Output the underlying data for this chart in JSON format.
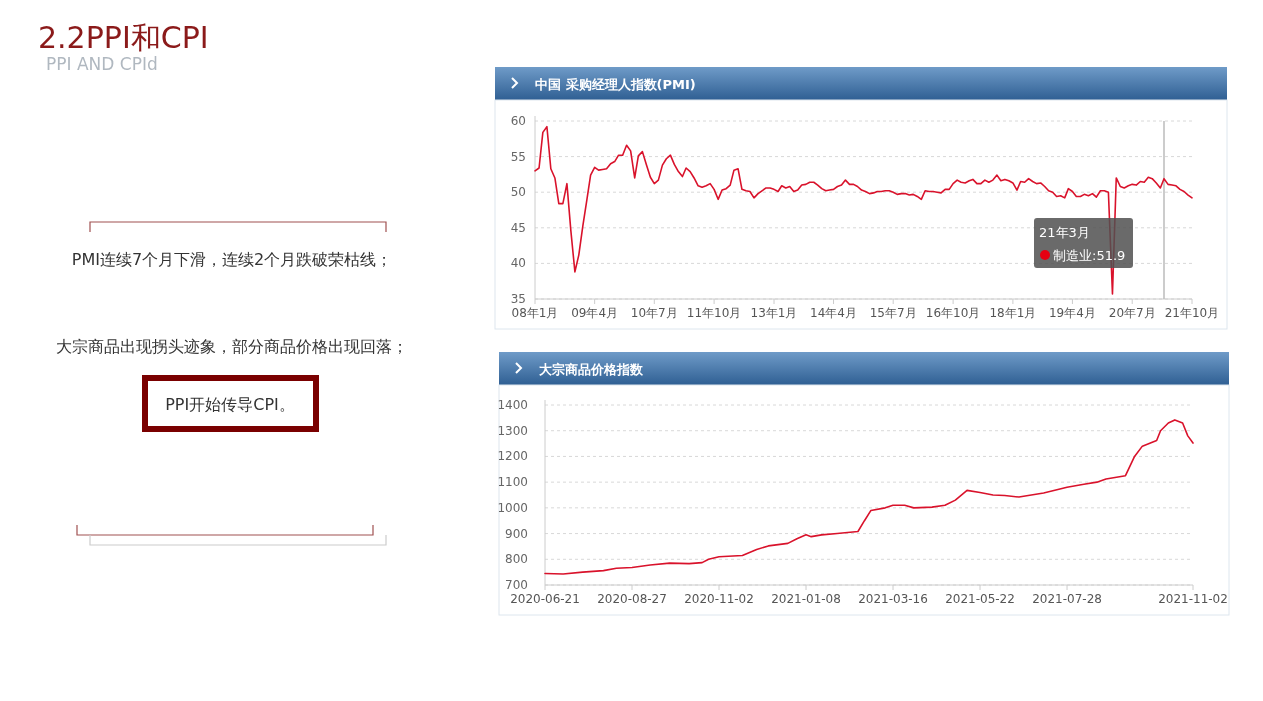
{
  "chart_data": [
    {
      "type": "other",
      "title": "2.2PPI和CPI",
      "subtitle": "PPI AND CPId",
      "annotations": [
        "PMI连续7个月下滑，连续2个月跌破荣枯线；",
        "大宗商品出现拐头迹象，部分商品价格出现回落；",
        "PPI开始传导CPI。"
      ]
    },
    {
      "type": "line",
      "title": "中国 采购经理人指数(PMI)",
      "xlim": [
        "2008-01",
        "2021-10"
      ],
      "ylim": [
        35,
        60
      ],
      "yticks": [
        35,
        40,
        45,
        50,
        55,
        60
      ],
      "grid": "y",
      "xticks": [
        {
          "value": "2008-01",
          "label": "08年1月"
        },
        {
          "value": "2009-04",
          "label": "09年4月"
        },
        {
          "value": "2010-07",
          "label": "10年7月"
        },
        {
          "value": "2011-10",
          "label": "11年10月"
        },
        {
          "value": "2013-01",
          "label": "13年1月"
        },
        {
          "value": "2014-04",
          "label": "14年4月"
        },
        {
          "value": "2015-07",
          "label": "15年7月"
        },
        {
          "value": "2016-10",
          "label": "16年10月"
        },
        {
          "value": "2018-01",
          "label": "18年1月"
        },
        {
          "value": "2019-04",
          "label": "19年4月"
        },
        {
          "value": "2020-07",
          "label": "20年7月"
        },
        {
          "value": "2021-10",
          "label": "21年10月"
        }
      ],
      "ref_lines": [
        {
          "axis": "x",
          "value": "2021-03",
          "color": "#bbbbbb"
        }
      ],
      "annotations": [
        "21年3月",
        "制造业:51.9"
      ],
      "series": [
        {
          "color": "#d9122b",
          "x": [
            "2008-01",
            "2008-02",
            "2008-03",
            "2008-04",
            "2008-05",
            "2008-06",
            "2008-07",
            "2008-08",
            "2008-09",
            "2008-10",
            "2008-11",
            "2008-12",
            "2009-01",
            "2009-02",
            "2009-03",
            "2009-04",
            "2009-05",
            "2009-06",
            "2009-07",
            "2009-08",
            "2009-09",
            "2009-10",
            "2009-11",
            "2009-12",
            "2010-01",
            "2010-02",
            "2010-03",
            "2010-04",
            "2010-05",
            "2010-06",
            "2010-07",
            "2010-08",
            "2010-09",
            "2010-10",
            "2010-11",
            "2010-12",
            "2011-01",
            "2011-02",
            "2011-03",
            "2011-04",
            "2011-05",
            "2011-06",
            "2011-07",
            "2011-08",
            "2011-09",
            "2011-10",
            "2011-11",
            "2011-12",
            "2012-01",
            "2012-02",
            "2012-03",
            "2012-04",
            "2012-05",
            "2012-06",
            "2012-07",
            "2012-08",
            "2012-09",
            "2012-10",
            "2012-11",
            "2012-12",
            "2013-01",
            "2013-02",
            "2013-03",
            "2013-04",
            "2013-05",
            "2013-06",
            "2013-07",
            "2013-08",
            "2013-09",
            "2013-10",
            "2013-11",
            "2013-12",
            "2014-01",
            "2014-02",
            "2014-03",
            "2014-04",
            "2014-05",
            "2014-06",
            "2014-07",
            "2014-08",
            "2014-09",
            "2014-10",
            "2014-11",
            "2014-12",
            "2015-01",
            "2015-02",
            "2015-03",
            "2015-04",
            "2015-05",
            "2015-06",
            "2015-07",
            "2015-08",
            "2015-09",
            "2015-10",
            "2015-11",
            "2015-12",
            "2016-01",
            "2016-02",
            "2016-03",
            "2016-04",
            "2016-05",
            "2016-06",
            "2016-07",
            "2016-08",
            "2016-09",
            "2016-10",
            "2016-11",
            "2016-12",
            "2017-01",
            "2017-02",
            "2017-03",
            "2017-04",
            "2017-05",
            "2017-06",
            "2017-07",
            "2017-08",
            "2017-09",
            "2017-10",
            "2017-11",
            "2017-12",
            "2018-01",
            "2018-02",
            "2018-03",
            "2018-04",
            "2018-05",
            "2018-06",
            "2018-07",
            "2018-08",
            "2018-09",
            "2018-10",
            "2018-11",
            "2018-12",
            "2019-01",
            "2019-02",
            "2019-03",
            "2019-04",
            "2019-05",
            "2019-06",
            "2019-07",
            "2019-08",
            "2019-09",
            "2019-10",
            "2019-11",
            "2019-12",
            "2020-01",
            "2020-02",
            "2020-03",
            "2020-04",
            "2020-05",
            "2020-06",
            "2020-07",
            "2020-08",
            "2020-09",
            "2020-10",
            "2020-11",
            "2020-12",
            "2021-01",
            "2021-02",
            "2021-03",
            "2021-04",
            "2021-05",
            "2021-06",
            "2021-07",
            "2021-08",
            "2021-09",
            "2021-10"
          ],
          "values": [
            53.0,
            53.4,
            58.4,
            59.2,
            53.3,
            52.0,
            48.4,
            48.4,
            51.2,
            44.6,
            38.8,
            41.2,
            45.3,
            49.0,
            52.4,
            53.5,
            53.1,
            53.2,
            53.3,
            54.0,
            54.3,
            55.2,
            55.2,
            56.6,
            55.8,
            52.0,
            55.1,
            55.7,
            53.9,
            52.1,
            51.2,
            51.7,
            53.8,
            54.7,
            55.2,
            53.9,
            52.9,
            52.2,
            53.4,
            52.9,
            52.0,
            50.9,
            50.7,
            50.9,
            51.2,
            50.4,
            49.0,
            50.3,
            50.5,
            51.0,
            53.1,
            53.3,
            50.4,
            50.2,
            50.1,
            49.2,
            49.8,
            50.2,
            50.6,
            50.6,
            50.4,
            50.1,
            50.9,
            50.6,
            50.8,
            50.1,
            50.3,
            51.0,
            51.1,
            51.4,
            51.4,
            51.0,
            50.5,
            50.2,
            50.3,
            50.4,
            50.8,
            51.0,
            51.7,
            51.1,
            51.1,
            50.8,
            50.3,
            50.1,
            49.8,
            49.9,
            50.1,
            50.1,
            50.2,
            50.2,
            50.0,
            49.7,
            49.8,
            49.8,
            49.6,
            49.7,
            49.4,
            49.0,
            50.2,
            50.1,
            50.1,
            50.0,
            49.9,
            50.4,
            50.4,
            51.2,
            51.7,
            51.4,
            51.3,
            51.6,
            51.8,
            51.2,
            51.2,
            51.7,
            51.4,
            51.7,
            52.4,
            51.6,
            51.8,
            51.6,
            51.3,
            50.3,
            51.5,
            51.4,
            51.9,
            51.5,
            51.2,
            51.3,
            50.8,
            50.2,
            50.0,
            49.4,
            49.5,
            49.2,
            50.5,
            50.1,
            49.4,
            49.4,
            49.7,
            49.5,
            49.8,
            49.3,
            50.2,
            50.2,
            50.0,
            35.7,
            52.0,
            50.8,
            50.6,
            50.9,
            51.1,
            51.0,
            51.5,
            51.4,
            52.1,
            51.9,
            51.3,
            50.6,
            51.9,
            51.1,
            51.0,
            50.9,
            50.4,
            50.1,
            49.6,
            49.2
          ]
        }
      ]
    },
    {
      "type": "line",
      "title": "大宗商品价格指数",
      "xlim": [
        "2020-06-21",
        "2021-11-02"
      ],
      "ylim": [
        700,
        1400
      ],
      "yticks": [
        700,
        800,
        900,
        1000,
        1100,
        1200,
        1300,
        1400
      ],
      "grid": "y",
      "xticks": [
        {
          "value": "2020-06-21",
          "label": "2020-06-21"
        },
        {
          "value": "2020-08-27",
          "label": "2020-08-27"
        },
        {
          "value": "2020-11-02",
          "label": "2020-11-02"
        },
        {
          "value": "2021-01-08",
          "label": "2021-01-08"
        },
        {
          "value": "2021-03-16",
          "label": "2021-03-16"
        },
        {
          "value": "2021-05-22",
          "label": "2021-05-22"
        },
        {
          "value": "2021-07-28",
          "label": "2021-07-28"
        },
        {
          "value": "2021-11-02",
          "label": "2021-11-02"
        }
      ],
      "series": [
        {
          "color": "#d9122b",
          "x": [
            "2020-06-21",
            "2020-07-05",
            "2020-07-20",
            "2020-08-05",
            "2020-08-15",
            "2020-08-27",
            "2020-09-10",
            "2020-09-25",
            "2020-10-10",
            "2020-10-20",
            "2020-10-25",
            "2020-11-02",
            "2020-11-20",
            "2020-12-01",
            "2020-12-10",
            "2020-12-25",
            "2021-01-01",
            "2021-01-08",
            "2021-01-12",
            "2021-01-20",
            "2021-02-01",
            "2021-02-17",
            "2021-02-22",
            "2021-02-27",
            "2021-03-10",
            "2021-03-16",
            "2021-03-25",
            "2021-04-01",
            "2021-04-15",
            "2021-04-25",
            "2021-05-03",
            "2021-05-12",
            "2021-05-22",
            "2021-06-01",
            "2021-06-10",
            "2021-06-21",
            "2021-07-10",
            "2021-07-28",
            "2021-08-10",
            "2021-08-20",
            "2021-08-27",
            "2021-09-11",
            "2021-09-18",
            "2021-09-24",
            "2021-10-05",
            "2021-10-08",
            "2021-10-14",
            "2021-10-19",
            "2021-10-25",
            "2021-10-29",
            "2021-11-02"
          ],
          "values": [
            745,
            743,
            750,
            756,
            765,
            768,
            778,
            785,
            783,
            787,
            800,
            810,
            815,
            838,
            852,
            862,
            880,
            895,
            888,
            895,
            900,
            908,
            950,
            990,
            1000,
            1010,
            1010,
            1000,
            1003,
            1010,
            1030,
            1068,
            1060,
            1050,
            1048,
            1042,
            1058,
            1080,
            1092,
            1100,
            1112,
            1125,
            1200,
            1240,
            1262,
            1300,
            1330,
            1342,
            1330,
            1280,
            1252
          ]
        }
      ]
    }
  ]
}
